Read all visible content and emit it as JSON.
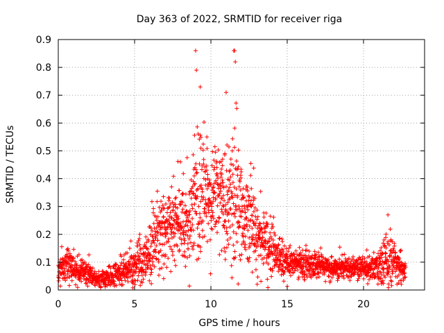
{
  "chart_data": {
    "type": "scatter",
    "title": "Day 363 of 2022, SRMTID for receiver riga",
    "xlabel": "GPS time / hours",
    "ylabel": "SRMTID / TECUs",
    "xlim": [
      0,
      24
    ],
    "ylim": [
      0,
      0.9
    ],
    "x_ticks": [
      0,
      5,
      10,
      15,
      20
    ],
    "x_tick_labels": [
      "0",
      "5",
      "10",
      "15",
      "20"
    ],
    "y_ticks": [
      0,
      0.1,
      0.2,
      0.3,
      0.4,
      0.5,
      0.6,
      0.7,
      0.8,
      0.9
    ],
    "y_tick_labels": [
      "0",
      "0.1",
      "0.2",
      "0.3",
      "0.4",
      "0.5",
      "0.6",
      "0.7",
      "0.8",
      "0.9"
    ],
    "grid": true,
    "marker": "+",
    "color": "#ff0000",
    "series": [
      {
        "name": "SRMTID",
        "x_start": 0.0,
        "x_end": 22.75,
        "points_count": 2300,
        "envelope_x": [
          0,
          0.5,
          1,
          2,
          2.5,
          3,
          3.5,
          4,
          4.5,
          5,
          5.5,
          6,
          6.5,
          7,
          7.5,
          8,
          8.5,
          9,
          9.5,
          10,
          10.5,
          11,
          11.5,
          12,
          12.5,
          13,
          13.5,
          14,
          15,
          16,
          17,
          18,
          19,
          20,
          21,
          21.5,
          22,
          22.75
        ],
        "envelope_median": [
          0.09,
          0.1,
          0.08,
          0.06,
          0.04,
          0.04,
          0.05,
          0.06,
          0.08,
          0.09,
          0.1,
          0.14,
          0.2,
          0.22,
          0.24,
          0.25,
          0.24,
          0.3,
          0.34,
          0.33,
          0.34,
          0.33,
          0.32,
          0.3,
          0.25,
          0.2,
          0.18,
          0.14,
          0.1,
          0.09,
          0.09,
          0.08,
          0.08,
          0.08,
          0.08,
          0.11,
          0.1,
          0.07
        ],
        "envelope_spread": [
          0.04,
          0.05,
          0.04,
          0.03,
          0.02,
          0.02,
          0.03,
          0.03,
          0.04,
          0.05,
          0.06,
          0.08,
          0.1,
          0.1,
          0.1,
          0.1,
          0.1,
          0.16,
          0.18,
          0.12,
          0.12,
          0.14,
          0.18,
          0.14,
          0.12,
          0.1,
          0.08,
          0.06,
          0.04,
          0.04,
          0.03,
          0.03,
          0.03,
          0.03,
          0.04,
          0.08,
          0.05,
          0.03
        ],
        "annotated_peaks": [
          {
            "x": 9.0,
            "y": 0.86
          },
          {
            "x": 9.05,
            "y": 0.79
          },
          {
            "x": 11.5,
            "y": 0.86
          },
          {
            "x": 11.55,
            "y": 0.86
          },
          {
            "x": 11.6,
            "y": 0.82
          },
          {
            "x": 9.3,
            "y": 0.73
          },
          {
            "x": 11.0,
            "y": 0.71
          },
          {
            "x": 21.6,
            "y": 0.27
          }
        ]
      }
    ]
  }
}
